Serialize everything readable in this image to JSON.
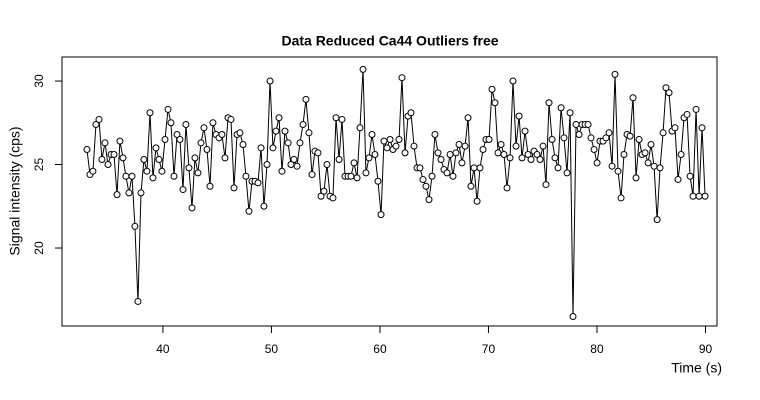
{
  "chart_data": {
    "type": "line",
    "title": "Data Reduced Ca44 Outliers free",
    "x_label": "Time (s)",
    "y_label": "Signal intensity (cps)",
    "color": "#000000",
    "marker": "circle",
    "xlim": [
      30.7,
      91.06
    ],
    "ylim": [
      15.33,
      31.44
    ],
    "xticks": [
      40,
      50,
      60,
      70,
      80,
      90
    ],
    "yticks": [
      20,
      25,
      30
    ],
    "x": [
      33.0,
      33.28,
      33.55,
      33.83,
      34.11,
      34.38,
      34.66,
      34.94,
      35.22,
      35.49,
      35.77,
      36.04,
      36.32,
      36.59,
      36.87,
      37.15,
      37.42,
      37.7,
      37.98,
      38.25,
      38.53,
      38.81,
      39.08,
      39.36,
      39.64,
      39.91,
      40.19,
      40.47,
      40.74,
      41.02,
      41.3,
      41.57,
      41.85,
      42.12,
      42.4,
      42.68,
      42.95,
      43.23,
      43.51,
      43.78,
      44.06,
      44.34,
      44.61,
      44.89,
      45.17,
      45.44,
      45.72,
      46.0,
      46.27,
      46.55,
      46.83,
      47.1,
      47.38,
      47.65,
      47.93,
      48.21,
      48.48,
      48.76,
      49.04,
      49.31,
      49.59,
      49.87,
      50.14,
      50.42,
      50.7,
      50.97,
      51.25,
      51.53,
      51.8,
      52.08,
      52.36,
      52.63,
      52.91,
      53.18,
      53.46,
      53.74,
      54.01,
      54.29,
      54.57,
      54.84,
      55.12,
      55.4,
      55.67,
      55.95,
      56.23,
      56.5,
      56.78,
      57.06,
      57.33,
      57.61,
      57.89,
      58.16,
      58.44,
      58.71,
      58.99,
      59.27,
      59.54,
      59.82,
      60.1,
      60.37,
      60.65,
      60.93,
      61.2,
      61.48,
      61.76,
      62.03,
      62.31,
      62.59,
      62.86,
      63.14,
      63.42,
      63.69,
      63.97,
      64.24,
      64.52,
      64.8,
      65.07,
      65.35,
      65.63,
      65.9,
      66.18,
      66.46,
      66.73,
      67.01,
      67.29,
      67.56,
      67.84,
      68.12,
      68.39,
      68.67,
      68.95,
      69.22,
      69.5,
      69.77,
      70.05,
      70.33,
      70.6,
      70.88,
      71.16,
      71.43,
      71.71,
      71.99,
      72.26,
      72.54,
      72.82,
      73.09,
      73.37,
      73.65,
      73.92,
      74.2,
      74.48,
      74.75,
      75.03,
      75.3,
      75.58,
      75.86,
      76.13,
      76.41,
      76.69,
      76.96,
      77.24,
      77.52,
      77.79,
      78.07,
      78.35,
      78.62,
      78.9,
      79.18,
      79.45,
      79.73,
      80.01,
      80.28,
      80.56,
      80.83,
      81.11,
      81.39,
      81.66,
      81.94,
      82.22,
      82.49,
      82.77,
      83.05,
      83.32,
      83.6,
      83.88,
      84.15,
      84.43,
      84.71,
      84.98,
      85.26,
      85.54,
      85.81,
      86.09,
      86.36,
      86.64,
      86.92,
      87.19,
      87.47,
      87.75,
      88.02,
      88.3,
      88.58,
      88.85,
      89.13,
      89.41,
      89.68,
      89.96
    ],
    "values": [
      25.9,
      24.4,
      24.6,
      27.4,
      27.7,
      25.3,
      26.3,
      25.0,
      25.6,
      25.6,
      23.2,
      26.4,
      25.4,
      24.3,
      23.3,
      24.3,
      21.3,
      16.8,
      23.3,
      25.3,
      24.6,
      28.1,
      24.2,
      26.0,
      25.3,
      24.6,
      26.5,
      28.3,
      27.5,
      24.3,
      26.8,
      26.5,
      23.5,
      27.4,
      24.8,
      22.4,
      25.4,
      24.5,
      26.3,
      27.2,
      25.9,
      23.7,
      27.5,
      26.8,
      26.6,
      26.8,
      25.4,
      27.8,
      27.7,
      23.6,
      26.8,
      26.9,
      26.2,
      24.3,
      22.2,
      24.0,
      24.0,
      23.9,
      26.0,
      22.5,
      25.0,
      30.0,
      26.0,
      27.0,
      27.8,
      24.6,
      27.0,
      26.3,
      25.0,
      25.3,
      24.9,
      26.3,
      27.4,
      28.9,
      26.9,
      24.4,
      25.8,
      25.7,
      23.1,
      23.4,
      25.0,
      23.1,
      23.0,
      27.8,
      25.3,
      27.7,
      24.3,
      24.3,
      24.3,
      25.1,
      24.2,
      27.2,
      30.7,
      24.5,
      25.4,
      26.8,
      25.6,
      24.0,
      22.0,
      26.4,
      26.0,
      26.5,
      25.9,
      26.1,
      26.5,
      30.2,
      25.7,
      27.9,
      28.1,
      26.1,
      24.8,
      24.8,
      24.1,
      23.7,
      22.9,
      24.3,
      26.8,
      25.7,
      25.3,
      24.7,
      24.5,
      25.6,
      24.3,
      25.7,
      26.2,
      25.1,
      26.1,
      27.8,
      23.7,
      24.8,
      22.8,
      24.8,
      25.9,
      26.5,
      26.5,
      29.5,
      28.7,
      25.7,
      26.2,
      25.6,
      23.6,
      25.4,
      30.0,
      26.1,
      27.9,
      25.4,
      27.0,
      25.6,
      25.3,
      25.8,
      25.6,
      25.3,
      26.1,
      23.8,
      28.7,
      26.5,
      25.4,
      24.8,
      28.4,
      26.6,
      24.5,
      28.1,
      15.9,
      27.4,
      26.8,
      27.4,
      27.4,
      27.4,
      26.6,
      25.9,
      25.1,
      26.4,
      26.4,
      26.6,
      26.9,
      24.9,
      30.4,
      24.6,
      23.0,
      25.6,
      26.8,
      26.7,
      29.0,
      24.2,
      26.5,
      25.6,
      25.7,
      25.1,
      26.2,
      24.9,
      21.7,
      24.8,
      26.9,
      29.6,
      29.3,
      27.0,
      27.2,
      24.1,
      25.6,
      27.8,
      28.0,
      24.3,
      23.1,
      28.3,
      23.1,
      27.2,
      23.1
    ]
  }
}
